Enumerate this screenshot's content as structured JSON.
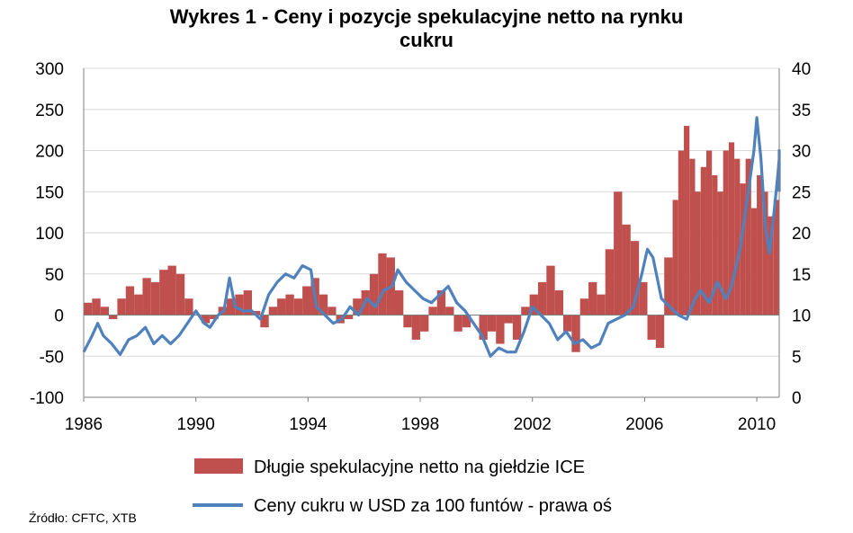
{
  "chart_data": {
    "type": "bar+line",
    "title_line1": "Wykres 1 - Ceny i pozycje spekulacyjne netto na rynku",
    "title_line2": "cukru",
    "x_ticks": [
      "1986",
      "1990",
      "1994",
      "1998",
      "2002",
      "2006",
      "2010"
    ],
    "x_range": [
      1986,
      2010.8
    ],
    "y_left": {
      "min": -100,
      "max": 300,
      "ticks": [
        "300",
        "250",
        "200",
        "150",
        "100",
        "50",
        "0",
        "-50",
        "-100"
      ]
    },
    "y_right": {
      "min": 0,
      "max": 40,
      "ticks": [
        "40",
        "35",
        "30",
        "25",
        "20",
        "15",
        "10",
        "5",
        "0"
      ]
    },
    "grid": true,
    "legend_position": "bottom",
    "colors": {
      "bars": "#c0504d",
      "line": "#4f81bd",
      "grid": "#d9d9d9",
      "axis": "#808080"
    },
    "series": [
      {
        "name": "Długie spekulacyjne netto na giełdzie ICE",
        "type": "bar",
        "axis": "left",
        "points": [
          [
            1986.0,
            15
          ],
          [
            1986.3,
            20
          ],
          [
            1986.6,
            10
          ],
          [
            1986.9,
            -5
          ],
          [
            1987.2,
            20
          ],
          [
            1987.5,
            35
          ],
          [
            1987.8,
            25
          ],
          [
            1988.1,
            45
          ],
          [
            1988.4,
            40
          ],
          [
            1988.7,
            55
          ],
          [
            1989.0,
            60
          ],
          [
            1989.3,
            50
          ],
          [
            1989.6,
            20
          ],
          [
            1989.9,
            0
          ],
          [
            1990.2,
            -10
          ],
          [
            1990.5,
            -5
          ],
          [
            1990.8,
            10
          ],
          [
            1991.1,
            20
          ],
          [
            1991.4,
            25
          ],
          [
            1991.7,
            30
          ],
          [
            1992.0,
            5
          ],
          [
            1992.3,
            -15
          ],
          [
            1992.6,
            10
          ],
          [
            1992.9,
            20
          ],
          [
            1993.2,
            25
          ],
          [
            1993.5,
            20
          ],
          [
            1993.8,
            35
          ],
          [
            1994.1,
            45
          ],
          [
            1994.4,
            25
          ],
          [
            1994.7,
            10
          ],
          [
            1995.0,
            -10
          ],
          [
            1995.3,
            -5
          ],
          [
            1995.6,
            20
          ],
          [
            1995.9,
            30
          ],
          [
            1996.2,
            50
          ],
          [
            1996.5,
            75
          ],
          [
            1996.8,
            70
          ],
          [
            1997.1,
            30
          ],
          [
            1997.4,
            -15
          ],
          [
            1997.7,
            -30
          ],
          [
            1998.0,
            -20
          ],
          [
            1998.3,
            10
          ],
          [
            1998.6,
            30
          ],
          [
            1998.9,
            10
          ],
          [
            1999.2,
            -20
          ],
          [
            1999.5,
            -15
          ],
          [
            1999.8,
            0
          ],
          [
            2000.1,
            -30
          ],
          [
            2000.4,
            -20
          ],
          [
            2000.7,
            -35
          ],
          [
            2001.0,
            -10
          ],
          [
            2001.3,
            -30
          ],
          [
            2001.6,
            10
          ],
          [
            2001.9,
            25
          ],
          [
            2002.2,
            40
          ],
          [
            2002.5,
            60
          ],
          [
            2002.8,
            30
          ],
          [
            2003.1,
            -20
          ],
          [
            2003.4,
            -45
          ],
          [
            2003.7,
            20
          ],
          [
            2004.0,
            40
          ],
          [
            2004.3,
            25
          ],
          [
            2004.6,
            80
          ],
          [
            2004.9,
            150
          ],
          [
            2005.2,
            110
          ],
          [
            2005.5,
            90
          ],
          [
            2005.8,
            40
          ],
          [
            2006.1,
            -30
          ],
          [
            2006.4,
            -40
          ],
          [
            2006.7,
            70
          ],
          [
            2007.0,
            140
          ],
          [
            2007.2,
            200
          ],
          [
            2007.4,
            230
          ],
          [
            2007.6,
            190
          ],
          [
            2007.8,
            150
          ],
          [
            2008.0,
            180
          ],
          [
            2008.2,
            200
          ],
          [
            2008.4,
            170
          ],
          [
            2008.6,
            150
          ],
          [
            2008.8,
            200
          ],
          [
            2009.0,
            210
          ],
          [
            2009.2,
            190
          ],
          [
            2009.4,
            160
          ],
          [
            2009.6,
            190
          ],
          [
            2009.8,
            130
          ],
          [
            2010.0,
            170
          ],
          [
            2010.2,
            150
          ],
          [
            2010.4,
            120
          ],
          [
            2010.6,
            140
          ]
        ]
      },
      {
        "name": "Ceny cukru w USD za 100 funtów - prawa oś",
        "type": "line",
        "axis": "right",
        "points": [
          [
            1986.0,
            5.5
          ],
          [
            1986.3,
            7.5
          ],
          [
            1986.5,
            9.0
          ],
          [
            1986.7,
            7.5
          ],
          [
            1987.0,
            6.5
          ],
          [
            1987.3,
            5.2
          ],
          [
            1987.6,
            7.0
          ],
          [
            1987.9,
            7.5
          ],
          [
            1988.2,
            8.5
          ],
          [
            1988.5,
            6.5
          ],
          [
            1988.8,
            7.5
          ],
          [
            1989.1,
            6.5
          ],
          [
            1989.4,
            7.5
          ],
          [
            1989.7,
            9.0
          ],
          [
            1990.0,
            10.5
          ],
          [
            1990.3,
            9.0
          ],
          [
            1990.5,
            8.5
          ],
          [
            1990.8,
            10.0
          ],
          [
            1991.0,
            10.5
          ],
          [
            1991.2,
            14.5
          ],
          [
            1991.4,
            11.0
          ],
          [
            1991.7,
            10.5
          ],
          [
            1992.0,
            10.5
          ],
          [
            1992.3,
            9.5
          ],
          [
            1992.6,
            12.5
          ],
          [
            1992.9,
            14.0
          ],
          [
            1993.2,
            15.0
          ],
          [
            1993.5,
            14.5
          ],
          [
            1993.8,
            16.0
          ],
          [
            1994.1,
            15.5
          ],
          [
            1994.3,
            11.0
          ],
          [
            1994.6,
            10.0
          ],
          [
            1994.9,
            9.0
          ],
          [
            1995.2,
            9.5
          ],
          [
            1995.5,
            11.0
          ],
          [
            1995.8,
            10.0
          ],
          [
            1996.1,
            12.0
          ],
          [
            1996.4,
            11.0
          ],
          [
            1996.7,
            13.0
          ],
          [
            1997.0,
            13.5
          ],
          [
            1997.2,
            15.5
          ],
          [
            1997.5,
            14.0
          ],
          [
            1997.8,
            13.0
          ],
          [
            1998.1,
            12.0
          ],
          [
            1998.4,
            11.5
          ],
          [
            1998.7,
            12.5
          ],
          [
            1999.0,
            13.5
          ],
          [
            1999.3,
            11.5
          ],
          [
            1999.6,
            10.5
          ],
          [
            1999.9,
            9.0
          ],
          [
            2000.2,
            7.5
          ],
          [
            2000.5,
            5.0
          ],
          [
            2000.8,
            6.0
          ],
          [
            2001.1,
            5.5
          ],
          [
            2001.4,
            5.5
          ],
          [
            2001.7,
            8.0
          ],
          [
            2002.0,
            11.0
          ],
          [
            2002.3,
            10.0
          ],
          [
            2002.6,
            9.0
          ],
          [
            2002.9,
            7.0
          ],
          [
            2003.2,
            8.0
          ],
          [
            2003.5,
            6.5
          ],
          [
            2003.8,
            7.0
          ],
          [
            2004.1,
            6.0
          ],
          [
            2004.4,
            6.5
          ],
          [
            2004.7,
            9.0
          ],
          [
            2005.0,
            9.5
          ],
          [
            2005.3,
            10.0
          ],
          [
            2005.6,
            11.0
          ],
          [
            2005.9,
            15.0
          ],
          [
            2006.1,
            18.0
          ],
          [
            2006.3,
            17.0
          ],
          [
            2006.6,
            12.0
          ],
          [
            2006.9,
            11.0
          ],
          [
            2007.2,
            10.0
          ],
          [
            2007.5,
            9.5
          ],
          [
            2007.8,
            12.0
          ],
          [
            2008.0,
            13.0
          ],
          [
            2008.3,
            11.5
          ],
          [
            2008.6,
            14.0
          ],
          [
            2008.9,
            12.0
          ],
          [
            2009.1,
            13.5
          ],
          [
            2009.4,
            18.0
          ],
          [
            2009.7,
            25.0
          ],
          [
            2009.9,
            30.0
          ],
          [
            2010.0,
            34.0
          ],
          [
            2010.15,
            29.0
          ],
          [
            2010.3,
            21.0
          ],
          [
            2010.45,
            17.5
          ],
          [
            2010.6,
            22.0
          ],
          [
            2010.75,
            27.0
          ],
          [
            2010.9,
            29.0
          ],
          [
            2011.0,
            30.0
          ],
          [
            2011.1,
            28.0
          ],
          [
            2011.2,
            25.0
          ]
        ]
      }
    ],
    "source": "Źródło: CFTC, XTB"
  }
}
